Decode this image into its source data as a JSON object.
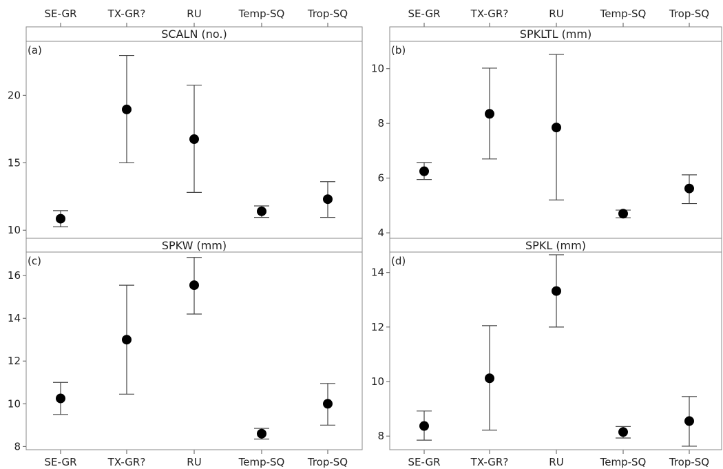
{
  "chart_data": {
    "type": "scatter",
    "subtype": "interval-plot",
    "categories": [
      "SE-GR",
      "TX-GR?",
      "RU",
      "Temp-SQ",
      "Trop-SQ"
    ],
    "panels": [
      {
        "letter": "(a)",
        "title": "SCALN (no.)",
        "ylim": [
          9.4,
          24.0
        ],
        "yticks": [
          10,
          15,
          20
        ],
        "means": [
          10.85,
          18.95,
          16.75,
          11.4,
          12.3
        ],
        "lower": [
          10.25,
          15.0,
          12.8,
          10.95,
          10.95
        ],
        "upper": [
          11.45,
          22.95,
          20.75,
          11.8,
          13.6
        ]
      },
      {
        "letter": "(b)",
        "title": "SPKLTL (mm)",
        "ylim": [
          3.8,
          11.0
        ],
        "yticks": [
          4,
          6,
          8,
          10
        ],
        "means": [
          6.25,
          8.35,
          7.85,
          4.7,
          5.62
        ],
        "lower": [
          5.95,
          6.7,
          5.2,
          4.55,
          5.07
        ],
        "upper": [
          6.57,
          10.02,
          10.52,
          4.83,
          6.12
        ]
      },
      {
        "letter": "(c)",
        "title": "SPKW (mm)",
        "ylim": [
          7.85,
          17.1
        ],
        "yticks": [
          8,
          10,
          12,
          14,
          16
        ],
        "means": [
          10.25,
          13.0,
          15.55,
          8.6,
          10.0
        ],
        "lower": [
          9.5,
          10.45,
          14.2,
          8.35,
          9.0
        ],
        "upper": [
          11.0,
          15.55,
          16.85,
          8.85,
          10.95
        ]
      },
      {
        "letter": "(d)",
        "title": "SPKL (mm)",
        "ylim": [
          7.5,
          14.75
        ],
        "yticks": [
          8,
          10,
          12,
          14
        ],
        "means": [
          8.37,
          10.12,
          13.32,
          8.15,
          8.55
        ],
        "lower": [
          7.85,
          8.22,
          12.0,
          7.93,
          7.63
        ],
        "upper": [
          8.92,
          12.05,
          14.65,
          8.35,
          9.45
        ]
      }
    ],
    "grid": false,
    "legend": "none"
  }
}
